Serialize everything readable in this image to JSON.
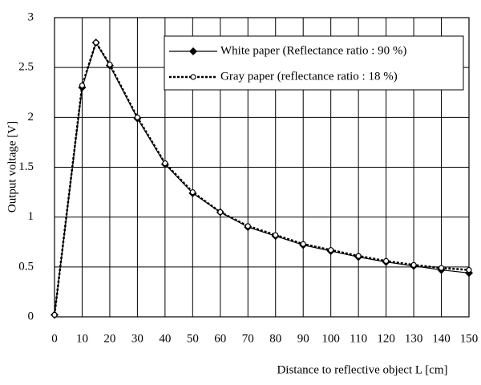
{
  "chart_data": {
    "type": "line",
    "x_label": "Distance to reflective object L [cm]",
    "y_label": "Output voltage [V]",
    "x": [
      0,
      10,
      15,
      20,
      30,
      40,
      50,
      60,
      70,
      80,
      90,
      100,
      110,
      120,
      130,
      140,
      150
    ],
    "series": [
      {
        "name": "White paper (Reflectance ratio : 90 %)",
        "color": "#000000",
        "line_style": "solid",
        "marker": "diamond",
        "values": [
          0.02,
          2.3,
          2.75,
          2.52,
          1.99,
          1.53,
          1.24,
          1.05,
          0.9,
          0.81,
          0.72,
          0.66,
          0.6,
          0.55,
          0.51,
          0.47,
          0.44
        ]
      },
      {
        "name": "Gray paper (reflectance ratio : 18 %)",
        "color": "#000000",
        "line_style": "dotted",
        "marker": "open-circle",
        "values": [
          0.02,
          2.32,
          2.75,
          2.53,
          2.0,
          1.54,
          1.25,
          1.05,
          0.91,
          0.82,
          0.73,
          0.67,
          0.61,
          0.56,
          0.52,
          0.49,
          0.47
        ]
      }
    ],
    "xlim": [
      0,
      150
    ],
    "xticks": [
      0,
      10,
      20,
      30,
      40,
      50,
      60,
      70,
      80,
      90,
      100,
      110,
      120,
      130,
      140,
      150
    ],
    "ylim": [
      0,
      3
    ],
    "yticks": [
      0,
      0.5,
      1,
      1.5,
      2,
      2.5,
      3
    ],
    "grid": true,
    "legend": "upper right"
  }
}
